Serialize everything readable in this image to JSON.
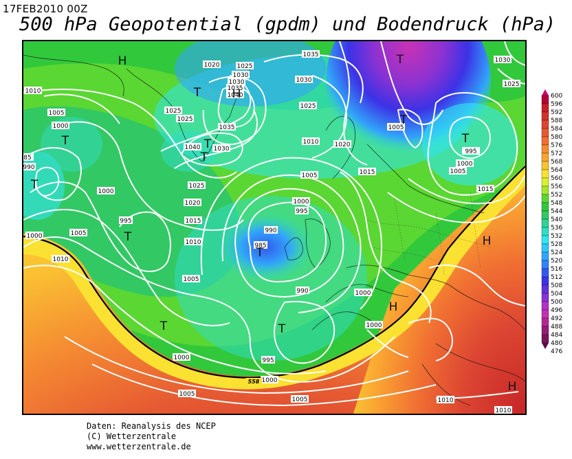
{
  "header": {
    "date": "17FEB2010 00Z",
    "title": "500 hPa Geopotential (gpdm) und Bodendruck (hPa)"
  },
  "legend": {
    "levels": [
      "600",
      "596",
      "592",
      "588",
      "584",
      "580",
      "576",
      "572",
      "568",
      "564",
      "560",
      "556",
      "552",
      "548",
      "544",
      "540",
      "536",
      "532",
      "528",
      "524",
      "520",
      "516",
      "512",
      "508",
      "504",
      "500",
      "496",
      "492",
      "488",
      "484",
      "480",
      "476"
    ],
    "colors": [
      "#c8006e",
      "#b4003c",
      "#c81e28",
      "#d2322d",
      "#dc4632",
      "#e65a32",
      "#f06e32",
      "#f58c32",
      "#faa532",
      "#fac332",
      "#fae132",
      "#d7f032",
      "#a5e632",
      "#5ad732",
      "#32c83c",
      "#32c864",
      "#32d296",
      "#32dcc3",
      "#32e6f0",
      "#32c8fa",
      "#32a5fa",
      "#3282fa",
      "#325af0",
      "#3c32e6",
      "#6432dc",
      "#8c32d2",
      "#b432c8",
      "#c332b4",
      "#b42896",
      "#961e78",
      "#78145a",
      "#5a0a46"
    ]
  },
  "pressure_labels": [
    {
      "t": "1035"
    },
    {
      "t": "1030"
    },
    {
      "t": "1030"
    },
    {
      "t": "1025"
    },
    {
      "t": "1020"
    },
    {
      "t": "1030"
    },
    {
      "t": "1035"
    },
    {
      "t": "1040"
    },
    {
      "t": "1025"
    },
    {
      "t": "1030"
    },
    {
      "t": "1025"
    },
    {
      "t": "1010"
    },
    {
      "t": "1005"
    },
    {
      "t": "1000"
    },
    {
      "t": "1025"
    },
    {
      "t": "1035"
    },
    {
      "t": "1040"
    },
    {
      "t": "1030"
    },
    {
      "t": "1025"
    },
    {
      "t": "1010"
    },
    {
      "t": "1020"
    },
    {
      "t": "1005"
    },
    {
      "t": "1015"
    },
    {
      "t": "1005"
    },
    {
      "t": "995"
    },
    {
      "t": "1000"
    },
    {
      "t": "1005"
    },
    {
      "t": "1015"
    },
    {
      "t": "85"
    },
    {
      "t": "990"
    },
    {
      "t": "1000"
    },
    {
      "t": "1025"
    },
    {
      "t": "1020"
    },
    {
      "t": "1015"
    },
    {
      "t": "1010"
    },
    {
      "t": "995"
    },
    {
      "t": "1000"
    },
    {
      "t": "1005"
    },
    {
      "t": "1010"
    },
    {
      "t": "1005"
    },
    {
      "t": "990"
    },
    {
      "t": "995"
    },
    {
      "t": "985"
    },
    {
      "t": "1000"
    },
    {
      "t": "1005"
    },
    {
      "t": "990"
    },
    {
      "t": "1000"
    },
    {
      "t": "1000"
    },
    {
      "t": "995"
    },
    {
      "t": "1000"
    },
    {
      "t": "1000"
    },
    {
      "t": "1005"
    },
    {
      "t": "1005"
    },
    {
      "t": "1010"
    },
    {
      "t": "1010"
    }
  ],
  "pressure_centers": [
    {
      "t": "H"
    },
    {
      "t": "T"
    },
    {
      "t": "H"
    },
    {
      "t": "T"
    },
    {
      "t": "T"
    },
    {
      "t": "T"
    },
    {
      "t": "T"
    },
    {
      "t": "T"
    },
    {
      "t": "T"
    },
    {
      "t": "T"
    },
    {
      "t": "T"
    },
    {
      "t": "T"
    },
    {
      "t": "T"
    },
    {
      "t": "T"
    },
    {
      "t": "H"
    },
    {
      "t": "H"
    }
  ],
  "contour_label": "558",
  "footer": {
    "line1": "Daten: Reanalysis des NCEP",
    "line2": "(C) Wetterzentrale",
    "line3": "www.wetterzentrale.de"
  }
}
